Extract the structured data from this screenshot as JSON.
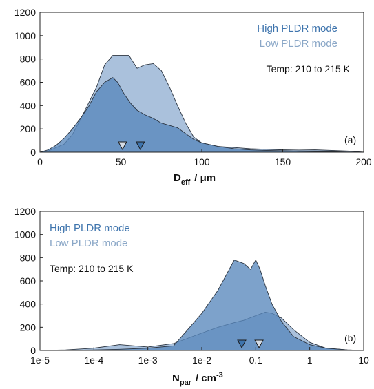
{
  "chart_data": [
    {
      "type": "area",
      "panel_label": "(a)",
      "annotation": "Temp: 210 to 215 K",
      "xlabel_main": "D",
      "xlabel_sub": "eff",
      "xlabel_unit": "/ μm",
      "xlim": [
        0,
        200
      ],
      "ylim": [
        0,
        1200
      ],
      "xscale": "linear",
      "xticks": [
        0,
        50,
        100,
        150,
        200
      ],
      "xtick_labels": [
        "0",
        "50",
        "100",
        "150",
        "200"
      ],
      "yticks": [
        0,
        200,
        400,
        600,
        800,
        1000,
        1200
      ],
      "ytick_labels": [
        "0",
        "200",
        "400",
        "600",
        "800",
        "1000",
        "1200"
      ],
      "legend_placement": "top-right",
      "series": [
        {
          "name": "High PLDR mode",
          "color": "#3e74ad",
          "fill": "#5888bd",
          "x": [
            0,
            5,
            10,
            15,
            20,
            25,
            30,
            35,
            40,
            45,
            48,
            52,
            56,
            60,
            65,
            70,
            75,
            80,
            85,
            90,
            95,
            100,
            110,
            120,
            130,
            140,
            150,
            160,
            170,
            180,
            190,
            200
          ],
          "values": [
            0,
            20,
            60,
            120,
            200,
            290,
            390,
            520,
            600,
            640,
            600,
            500,
            420,
            360,
            320,
            290,
            250,
            230,
            210,
            160,
            110,
            80,
            50,
            30,
            20,
            15,
            12,
            8,
            6,
            4,
            2,
            0
          ]
        },
        {
          "name": "Low PLDR mode",
          "color": "#8aa7c7",
          "fill": "#a3bcd9",
          "x": [
            0,
            5,
            10,
            15,
            20,
            25,
            30,
            35,
            40,
            45,
            50,
            55,
            60,
            65,
            70,
            75,
            80,
            85,
            90,
            95,
            100,
            110,
            120,
            130,
            140,
            150,
            160,
            170,
            180,
            190,
            200
          ],
          "values": [
            0,
            10,
            40,
            70,
            150,
            280,
            420,
            560,
            750,
            830,
            830,
            830,
            720,
            750,
            760,
            700,
            560,
            400,
            250,
            130,
            80,
            50,
            40,
            30,
            25,
            20,
            18,
            20,
            15,
            10,
            0
          ]
        }
      ],
      "markers": [
        {
          "series": "Low PLDR mode",
          "x": 51,
          "fill": "#d6dde6"
        },
        {
          "series": "High PLDR mode",
          "x": 62,
          "fill": "#3e74ad"
        }
      ]
    },
    {
      "type": "area",
      "panel_label": "(b)",
      "annotation": "Temp: 210 to 215 K",
      "xlabel_main": "N",
      "xlabel_sub": "par",
      "xlabel_unit": "/ cm",
      "xlabel_sup": "-3",
      "xlim": [
        1e-05,
        10
      ],
      "ylim": [
        0,
        1200
      ],
      "xscale": "log",
      "xticks": [
        1e-05,
        0.0001,
        0.001,
        0.01,
        0.1,
        1,
        10
      ],
      "xtick_labels": [
        "1e-5",
        "1e-4",
        "1e-3",
        "1e-2",
        "0.1",
        "1",
        "10"
      ],
      "yticks": [
        0,
        200,
        400,
        600,
        800,
        1000,
        1200
      ],
      "ytick_labels": [
        "0",
        "200",
        "400",
        "600",
        "800",
        "1000",
        "1200"
      ],
      "legend_placement": "top-left",
      "series": [
        {
          "name": "High PLDR mode",
          "color": "#3e74ad",
          "fill": "#5888bd",
          "x": [
            1e-05,
            3e-05,
            0.0001,
            0.0003,
            0.001,
            0.003,
            0.01,
            0.02,
            0.04,
            0.06,
            0.08,
            0.1,
            0.12,
            0.15,
            0.2,
            0.3,
            0.5,
            1,
            2,
            5,
            10
          ],
          "values": [
            0,
            0,
            5,
            10,
            20,
            40,
            320,
            520,
            780,
            750,
            700,
            780,
            700,
            560,
            400,
            250,
            120,
            50,
            20,
            5,
            0
          ]
        },
        {
          "name": "Low PLDR mode",
          "color": "#8aa7c7",
          "fill": "#a3bcd9",
          "x": [
            1e-05,
            3e-05,
            0.0001,
            0.0003,
            0.001,
            0.003,
            0.01,
            0.02,
            0.04,
            0.06,
            0.1,
            0.15,
            0.2,
            0.3,
            0.5,
            1,
            2,
            5,
            10
          ],
          "values": [
            0,
            5,
            20,
            50,
            30,
            60,
            150,
            200,
            240,
            260,
            300,
            330,
            320,
            280,
            180,
            70,
            20,
            5,
            0
          ]
        }
      ],
      "markers": [
        {
          "series": "High PLDR mode",
          "x": 0.055,
          "fill": "#3e74ad"
        },
        {
          "series": "Low PLDR mode",
          "x": 0.115,
          "fill": "#d6dde6"
        }
      ]
    }
  ]
}
